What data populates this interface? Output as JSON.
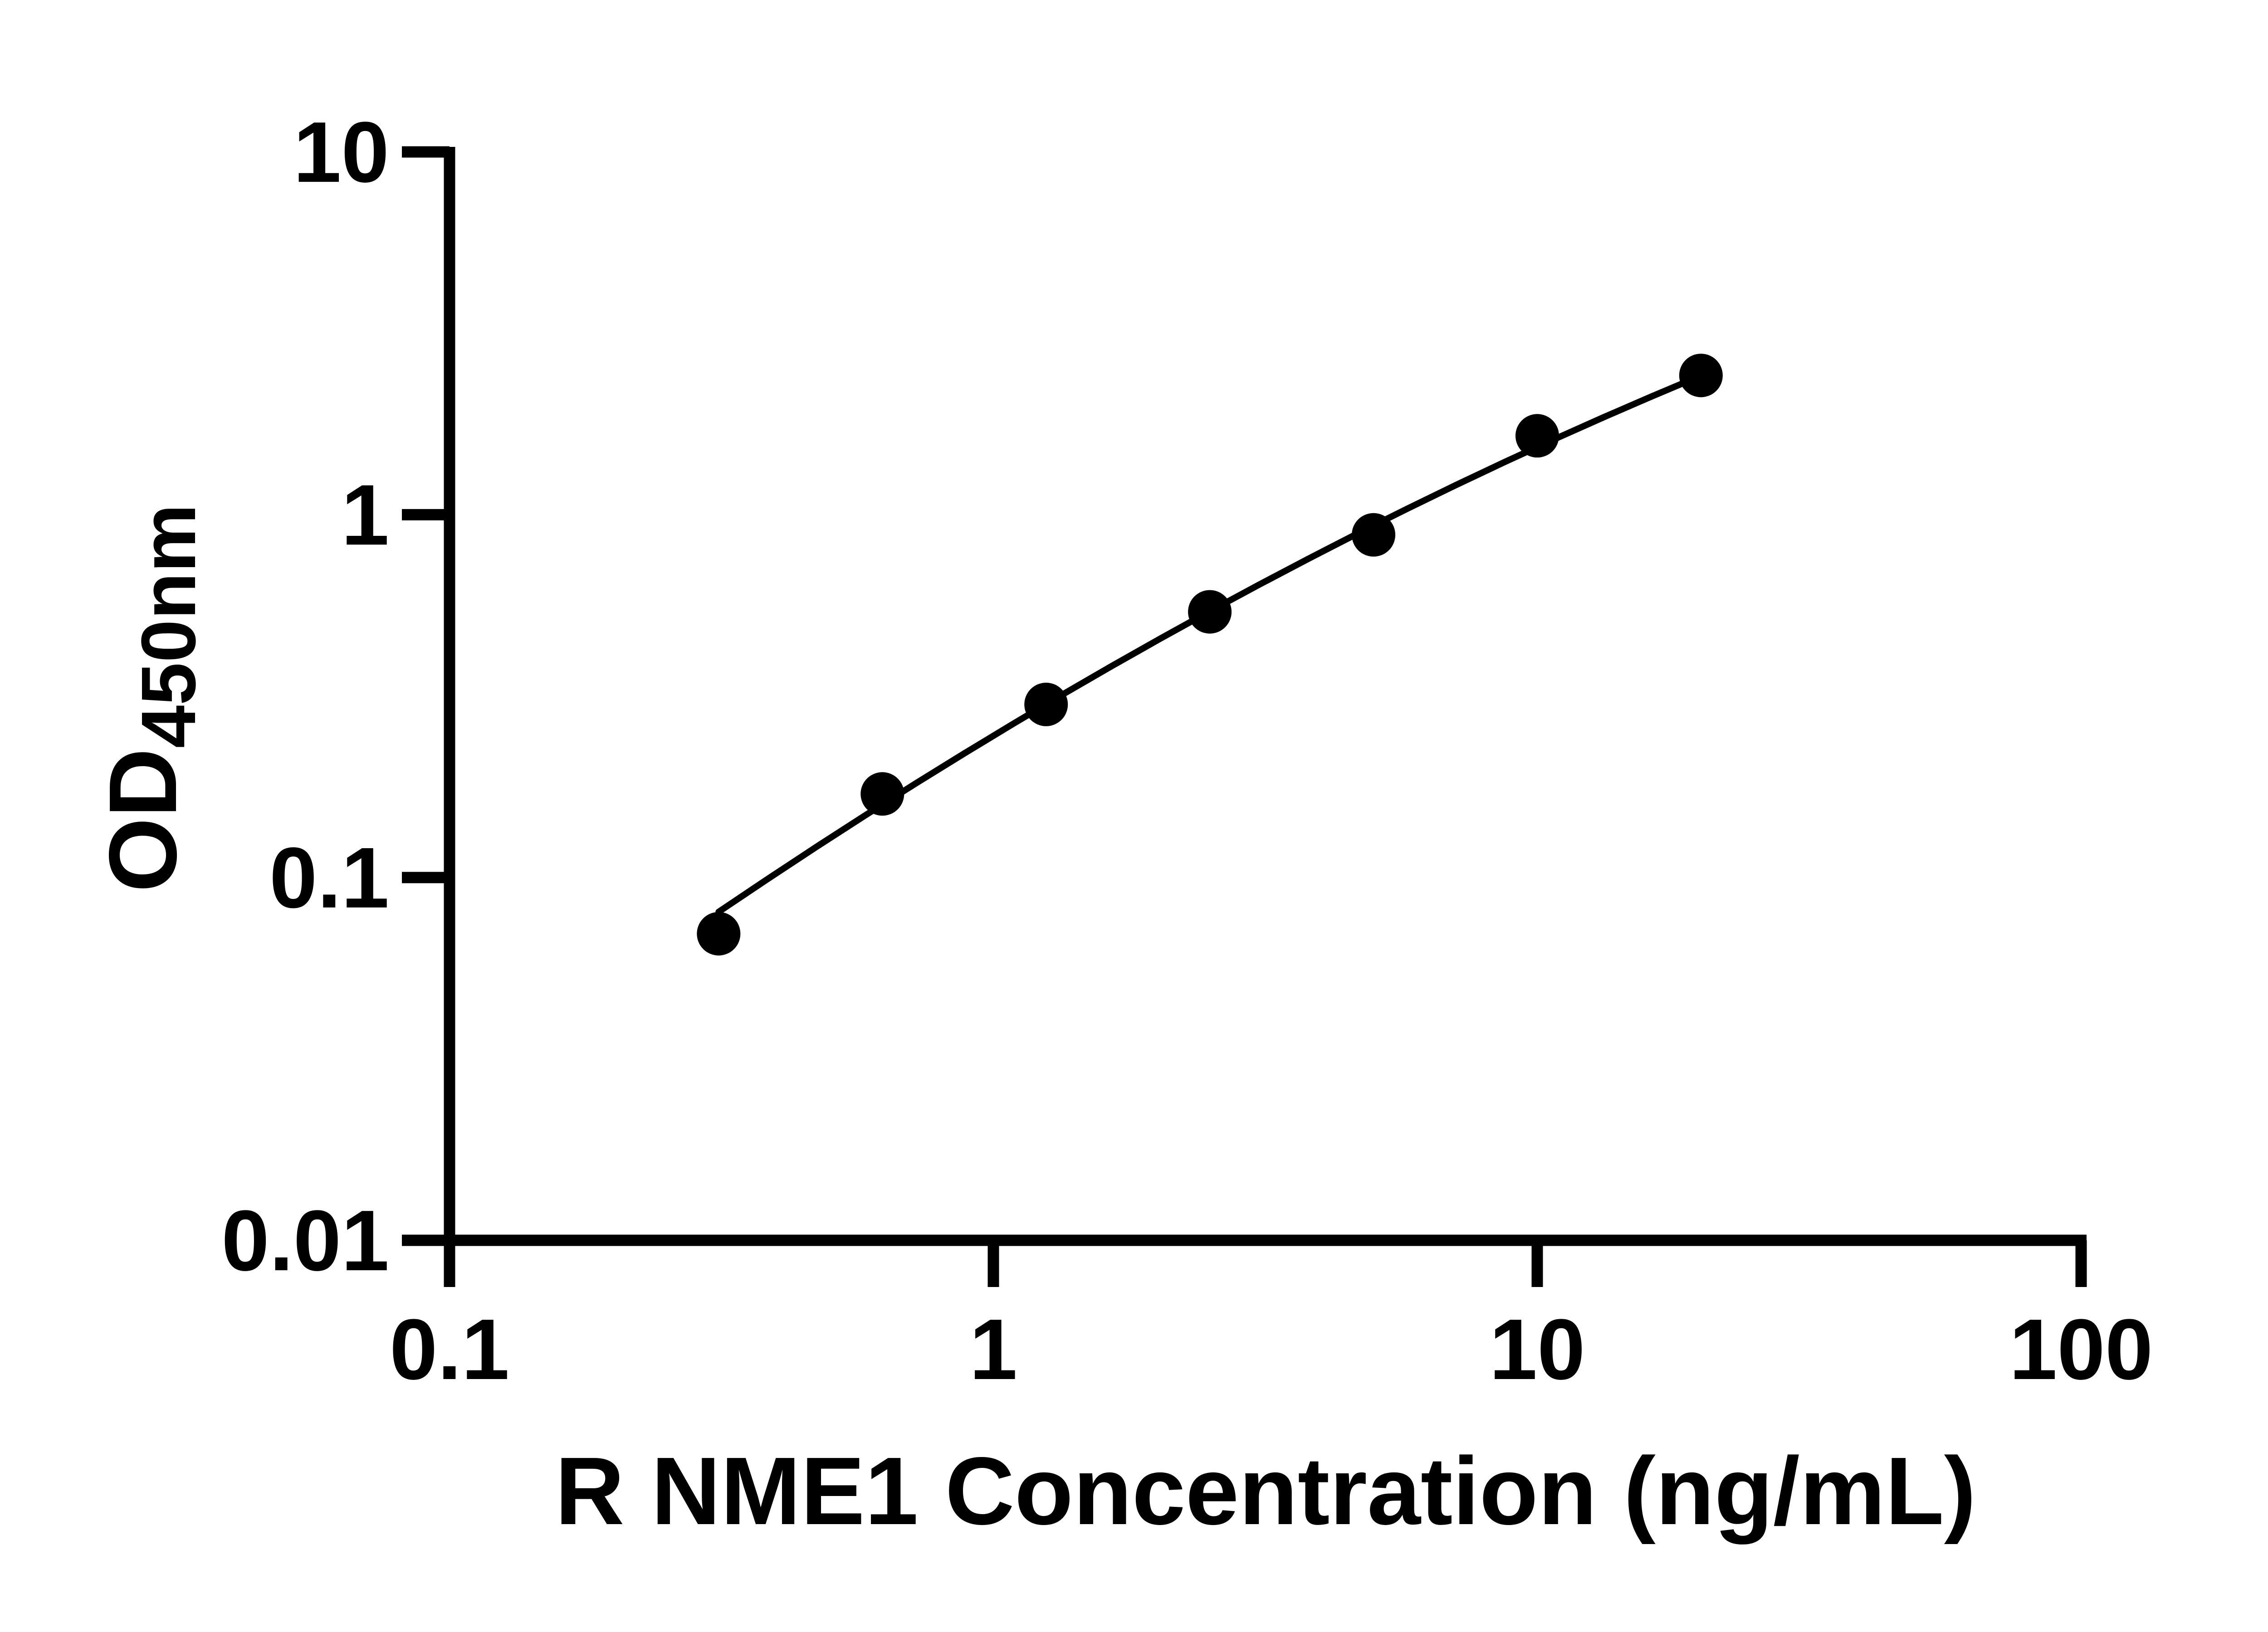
{
  "chart_data": {
    "type": "scatter",
    "title": "",
    "xlabel": "R NME1 Concentration (ng/mL)",
    "ylabel_main": "OD",
    "ylabel_sub": "450nm",
    "xscale": "log",
    "yscale": "log",
    "xlim": [
      0.1,
      100
    ],
    "ylim": [
      0.01,
      10
    ],
    "grid": false,
    "legend": null,
    "background_color": "#ffffff",
    "marker_color": "#000000",
    "line_color": "#000000",
    "text_color": "#000000",
    "x": [
      0.3125,
      0.625,
      1.25,
      2.5,
      5,
      10,
      20
    ],
    "y": [
      0.07,
      0.17,
      0.3,
      0.54,
      0.88,
      1.65,
      2.42
    ],
    "x_ticks": [
      0.1,
      1,
      10,
      100
    ],
    "x_tick_labels": [
      "0.1",
      "1",
      "10",
      "100"
    ],
    "y_ticks": [
      0.01,
      0.1,
      1,
      10
    ],
    "y_tick_labels": [
      "0.01",
      "0.1",
      "1",
      "10"
    ],
    "fit_curve": {
      "x": [
        0.3125,
        0.3847,
        0.4737,
        0.583,
        0.7182,
        0.884,
        1.0885,
        1.34,
        1.6495,
        2.031,
        2.5003,
        3.0782,
        3.7904,
        4.6645,
        5.7437,
        7.07,
        8.7055,
        10.718,
        13.194,
        16.245,
        20.0
      ],
      "y": [
        0.0804,
        0.0991,
        0.1217,
        0.1488,
        0.1813,
        0.2198,
        0.2655,
        0.3194,
        0.3825,
        0.4562,
        0.542,
        0.6412,
        0.7554,
        0.8863,
        1.0356,
        1.205,
        1.3964,
        1.6115,
        1.8516,
        2.1194,
        2.417
      ]
    }
  }
}
